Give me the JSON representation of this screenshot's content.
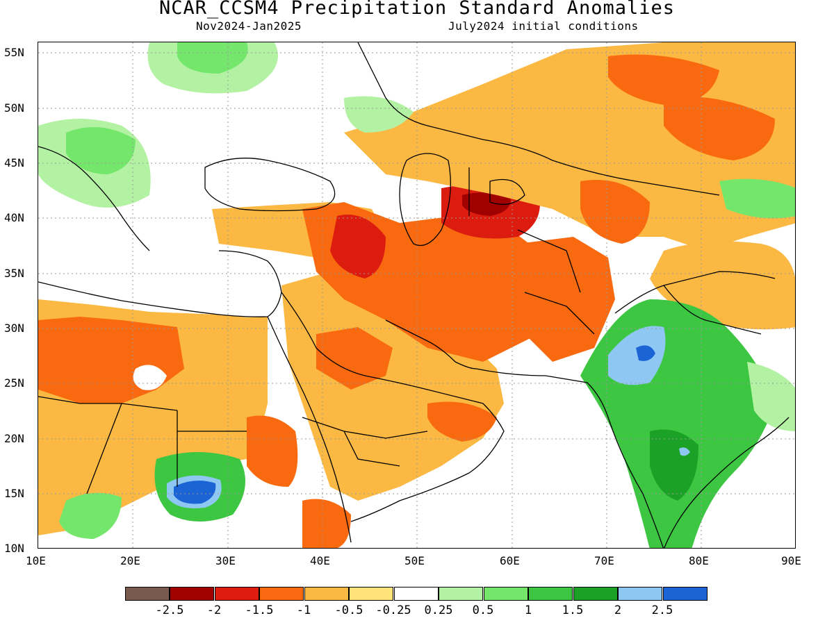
{
  "header": {
    "title": "NCAR_CCSM4 Precipitation Standard Anomalies",
    "period": "Nov2024-Jan2025",
    "init": "July2024 initial conditions"
  },
  "axes": {
    "lat_labels": [
      "55N",
      "50N",
      "45N",
      "40N",
      "35N",
      "30N",
      "25N",
      "20N",
      "15N",
      "10N"
    ],
    "lon_labels": [
      "10E",
      "20E",
      "30E",
      "40E",
      "50E",
      "60E",
      "70E",
      "80E",
      "90E"
    ],
    "lat_range": [
      10,
      56
    ],
    "lon_range": [
      10,
      90
    ],
    "grid": true
  },
  "legend": {
    "colors": [
      "#7a5a4f",
      "#a00000",
      "#dd1c10",
      "#f96a10",
      "#fbb843",
      "#fde37a",
      "#ffffff",
      "#b4f2a3",
      "#74e66c",
      "#3cc642",
      "#1ba226",
      "#8ec8f2",
      "#1a64d6"
    ],
    "labels": [
      "-2.5",
      "-2",
      "-1.5",
      "-1",
      "-0.5",
      "-0.25",
      "0.25",
      "0.5",
      "1",
      "1.5",
      "2",
      "2.5"
    ]
  }
}
